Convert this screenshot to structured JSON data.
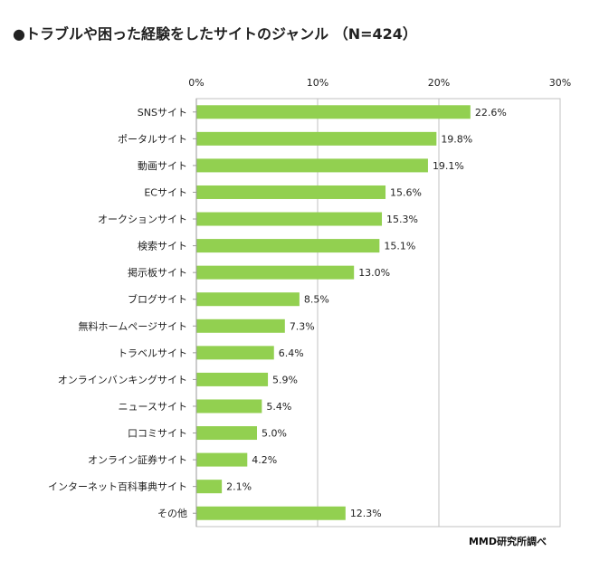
{
  "title": "●トラブルや困った経験をしたサイトのジャンル （N=424）",
  "credit": "MMD研究所調べ",
  "colors": {
    "bar": "#92d050",
    "grid": "#c0c0c0",
    "axis": "#9a9a9a"
  },
  "chart_data": {
    "type": "bar",
    "orientation": "horizontal",
    "categories": [
      "SNSサイト",
      "ポータルサイト",
      "動画サイト",
      "ECサイト",
      "オークションサイト",
      "検索サイト",
      "掲示板サイト",
      "ブログサイト",
      "無料ホームページサイト",
      "トラベルサイト",
      "オンラインバンキングサイト",
      "ニュースサイト",
      "口コミサイト",
      "オンライン証券サイト",
      "インターネット百科事典サイト",
      "その他"
    ],
    "values": [
      22.6,
      19.8,
      19.1,
      15.6,
      15.3,
      15.1,
      13.0,
      8.5,
      7.3,
      6.4,
      5.9,
      5.4,
      5.0,
      4.2,
      2.1,
      12.3
    ],
    "value_labels": [
      "22.6%",
      "19.8%",
      "19.1%",
      "15.6%",
      "15.3%",
      "15.1%",
      "13.0%",
      "8.5%",
      "7.3%",
      "6.4%",
      "5.9%",
      "5.4%",
      "5.0%",
      "4.2%",
      "2.1%",
      "12.3%"
    ],
    "ticks": [
      0,
      10,
      20,
      30
    ],
    "tick_labels": [
      "0%",
      "10%",
      "20%",
      "30%"
    ],
    "xlim": [
      0,
      30
    ],
    "grid": true,
    "tick_position": "top"
  }
}
